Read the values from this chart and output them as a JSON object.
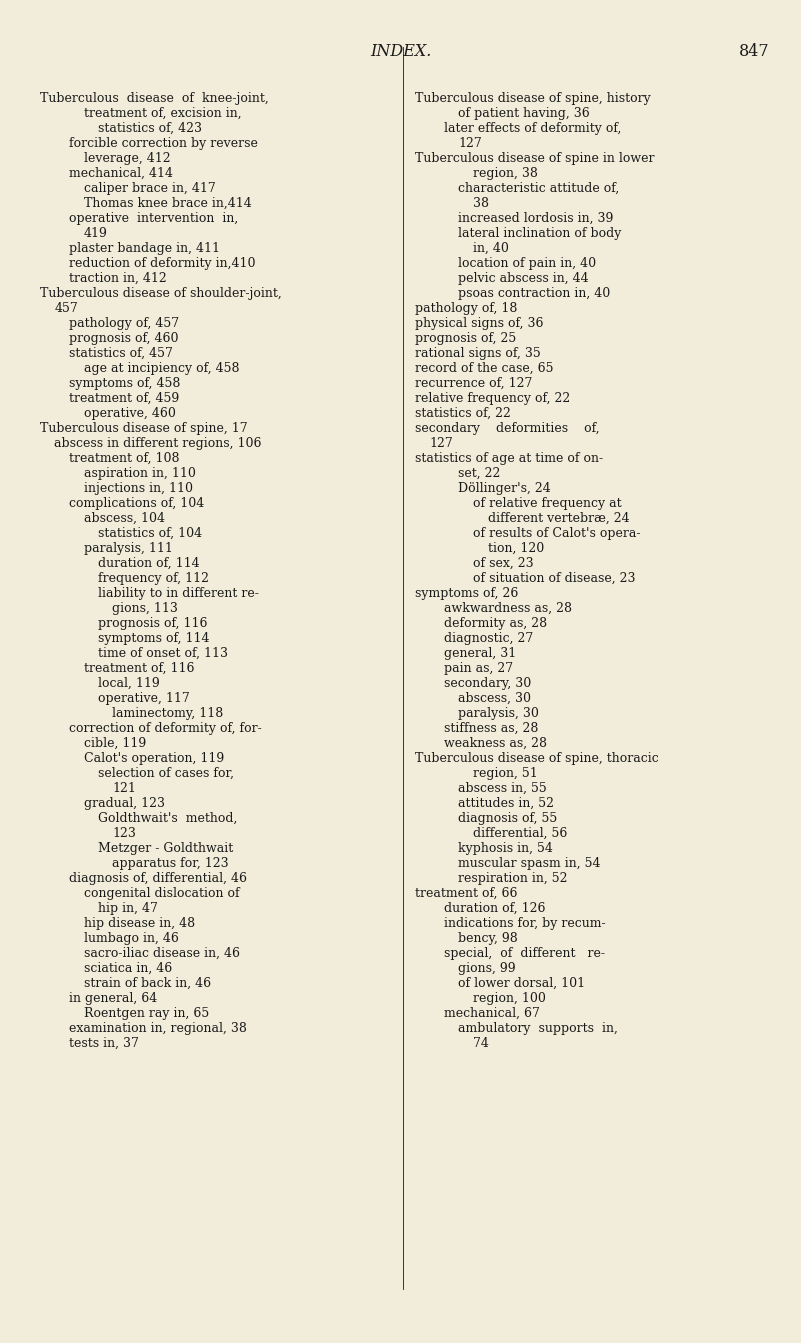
{
  "bg_color": "#f2edda",
  "text_color": "#1a1a1a",
  "title": "INDEX.",
  "page_num": "847",
  "title_fontsize": 11.5,
  "body_fontsize": 9.0,
  "left_col": [
    [
      "Tuberculous  disease  of  knee-joint,",
      0
    ],
    [
      "treatment of, excision in,",
      3
    ],
    [
      "statistics of, 423",
      4
    ],
    [
      "forcible correction by reverse",
      2
    ],
    [
      "leverage, 412",
      3
    ],
    [
      "mechanical, 414",
      2
    ],
    [
      "caliper brace in, 417",
      3
    ],
    [
      "Thomas knee brace in,414",
      3
    ],
    [
      "operative  intervention  in,",
      2
    ],
    [
      "419",
      3
    ],
    [
      "plaster bandage in, 411",
      2
    ],
    [
      "reduction of deformity in,410",
      2
    ],
    [
      "traction in, 412",
      2
    ],
    [
      "Tuberculous disease of shoulder-joint,",
      0
    ],
    [
      "457",
      1
    ],
    [
      "pathology of, 457",
      2
    ],
    [
      "prognosis of, 460",
      2
    ],
    [
      "statistics of, 457",
      2
    ],
    [
      "age at incipiency of, 458",
      3
    ],
    [
      "symptoms of, 458",
      2
    ],
    [
      "treatment of, 459",
      2
    ],
    [
      "operative, 460",
      3
    ],
    [
      "Tuberculous disease of spine, 17",
      0
    ],
    [
      "abscess in different regions, 106",
      1
    ],
    [
      "treatment of, 108",
      2
    ],
    [
      "aspiration in, 110",
      3
    ],
    [
      "injections in, 110",
      3
    ],
    [
      "complications of, 104",
      2
    ],
    [
      "abscess, 104",
      3
    ],
    [
      "statistics of, 104",
      4
    ],
    [
      "paralysis, 111",
      3
    ],
    [
      "duration of, 114",
      4
    ],
    [
      "frequency of, 112",
      4
    ],
    [
      "liability to in different re-",
      4
    ],
    [
      "gions, 113",
      5
    ],
    [
      "prognosis of, 116",
      4
    ],
    [
      "symptoms of, 114",
      4
    ],
    [
      "time of onset of, 113",
      4
    ],
    [
      "treatment of, 116",
      3
    ],
    [
      "local, 119",
      4
    ],
    [
      "operative, 117",
      4
    ],
    [
      "laminectomy, 118",
      5
    ],
    [
      "correction of deformity of, for-",
      2
    ],
    [
      "cible, 119",
      3
    ],
    [
      "Calot's operation, 119",
      3
    ],
    [
      "selection of cases for,",
      4
    ],
    [
      "121",
      5
    ],
    [
      "gradual, 123",
      3
    ],
    [
      "Goldthwait's  method,",
      4
    ],
    [
      "123",
      5
    ],
    [
      "Metzger - Goldthwait",
      4
    ],
    [
      "apparatus for, 123",
      5
    ],
    [
      "diagnosis of, differential, 46",
      2
    ],
    [
      "congenital dislocation of",
      3
    ],
    [
      "hip in, 47",
      4
    ],
    [
      "hip disease in, 48",
      3
    ],
    [
      "lumbago in, 46",
      3
    ],
    [
      "sacro-iliac disease in, 46",
      3
    ],
    [
      "sciatica in, 46",
      3
    ],
    [
      "strain of back in, 46",
      3
    ],
    [
      "in general, 64",
      2
    ],
    [
      "Roentgen ray in, 65",
      3
    ],
    [
      "examination in, regional, 38",
      2
    ],
    [
      "tests in, 37",
      2
    ]
  ],
  "right_col": [
    [
      "Tuberculous disease of spine, history",
      0
    ],
    [
      "of patient having, 36",
      3
    ],
    [
      "later effects of deformity of,",
      2
    ],
    [
      "127",
      3
    ],
    [
      "Tuberculous disease of spine in lower",
      0
    ],
    [
      "region, 38",
      4
    ],
    [
      "characteristic attitude of,",
      3
    ],
    [
      "38",
      4
    ],
    [
      "increased lordosis in, 39",
      3
    ],
    [
      "lateral inclination of body",
      3
    ],
    [
      "in, 40",
      4
    ],
    [
      "location of pain in, 40",
      3
    ],
    [
      "pelvic abscess in, 44",
      3
    ],
    [
      "psoas contraction in, 40",
      3
    ],
    [
      "pathology of, 18",
      0
    ],
    [
      "physical signs of, 36",
      0
    ],
    [
      "prognosis of, 25",
      0
    ],
    [
      "rational signs of, 35",
      0
    ],
    [
      "record of the case, 65",
      0
    ],
    [
      "recurrence of, 127",
      0
    ],
    [
      "relative frequency of, 22",
      0
    ],
    [
      "statistics of, 22",
      0
    ],
    [
      "secondary    deformities    of,",
      0
    ],
    [
      "127",
      1
    ],
    [
      "statistics of age at time of on-",
      0
    ],
    [
      "set, 22",
      3
    ],
    [
      "Döllinger's, 24",
      3
    ],
    [
      "of relative frequency at",
      4
    ],
    [
      "different vertebræ, 24",
      5
    ],
    [
      "of results of Calot's opera-",
      4
    ],
    [
      "tion, 120",
      5
    ],
    [
      "of sex, 23",
      4
    ],
    [
      "of situation of disease, 23",
      4
    ],
    [
      "symptoms of, 26",
      0
    ],
    [
      "awkwardness as, 28",
      2
    ],
    [
      "deformity as, 28",
      2
    ],
    [
      "diagnostic, 27",
      2
    ],
    [
      "general, 31",
      2
    ],
    [
      "pain as, 27",
      2
    ],
    [
      "secondary, 30",
      2
    ],
    [
      "abscess, 30",
      3
    ],
    [
      "paralysis, 30",
      3
    ],
    [
      "stiffness as, 28",
      2
    ],
    [
      "weakness as, 28",
      2
    ],
    [
      "Tuberculous disease of spine, thoracic",
      0
    ],
    [
      "region, 51",
      4
    ],
    [
      "abscess in, 55",
      3
    ],
    [
      "attitudes in, 52",
      3
    ],
    [
      "diagnosis of, 55",
      3
    ],
    [
      "differential, 56",
      4
    ],
    [
      "kyphosis in, 54",
      3
    ],
    [
      "muscular spasm in, 54",
      3
    ],
    [
      "respiration in, 52",
      3
    ],
    [
      "treatment of, 66",
      0
    ],
    [
      "duration of, 126",
      2
    ],
    [
      "indications for, by recum-",
      2
    ],
    [
      "bency, 98",
      3
    ],
    [
      "special,  of  different   re-",
      2
    ],
    [
      "gions, 99",
      3
    ],
    [
      "of lower dorsal, 101",
      3
    ],
    [
      "region, 100",
      4
    ],
    [
      "mechanical, 67",
      2
    ],
    [
      "ambulatory  supports  in,",
      3
    ],
    [
      "74",
      4
    ]
  ]
}
